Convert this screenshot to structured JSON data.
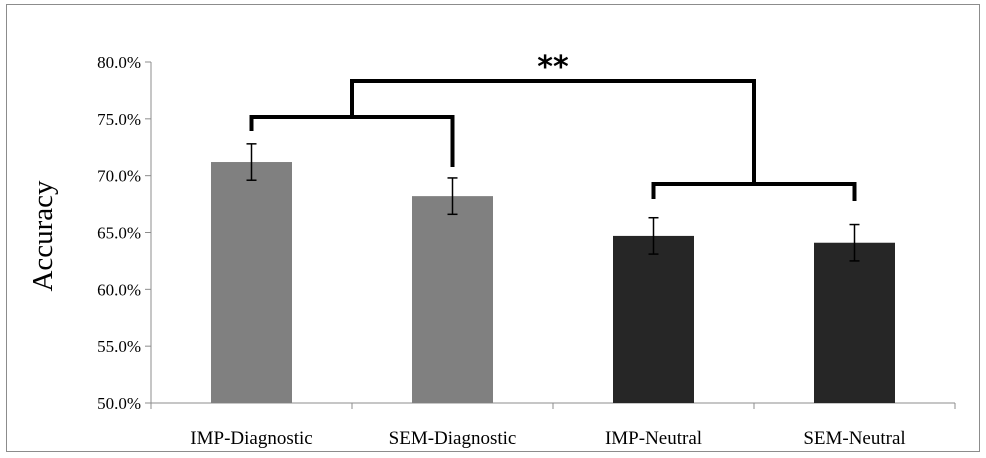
{
  "chart_data": {
    "type": "bar",
    "categories": [
      "IMP-Diagnostic",
      "SEM-Diagnostic",
      "IMP-Neutral",
      "SEM-Neutral"
    ],
    "values": [
      71.2,
      68.2,
      64.7,
      64.1
    ],
    "errors": [
      1.6,
      1.6,
      1.6,
      1.6
    ],
    "bar_colors": [
      "#808080",
      "#808080",
      "#262626",
      "#262626"
    ],
    "ylabel": "Accuracy",
    "ylim": [
      50,
      80
    ],
    "yticks": [
      "50.0%",
      "55.0%",
      "60.0%",
      "65.0%",
      "70.0%",
      "75.0%",
      "80.0%"
    ],
    "ytick_values": [
      50,
      55,
      60,
      65,
      70,
      75,
      80
    ],
    "grid": false,
    "annotation": "**"
  }
}
